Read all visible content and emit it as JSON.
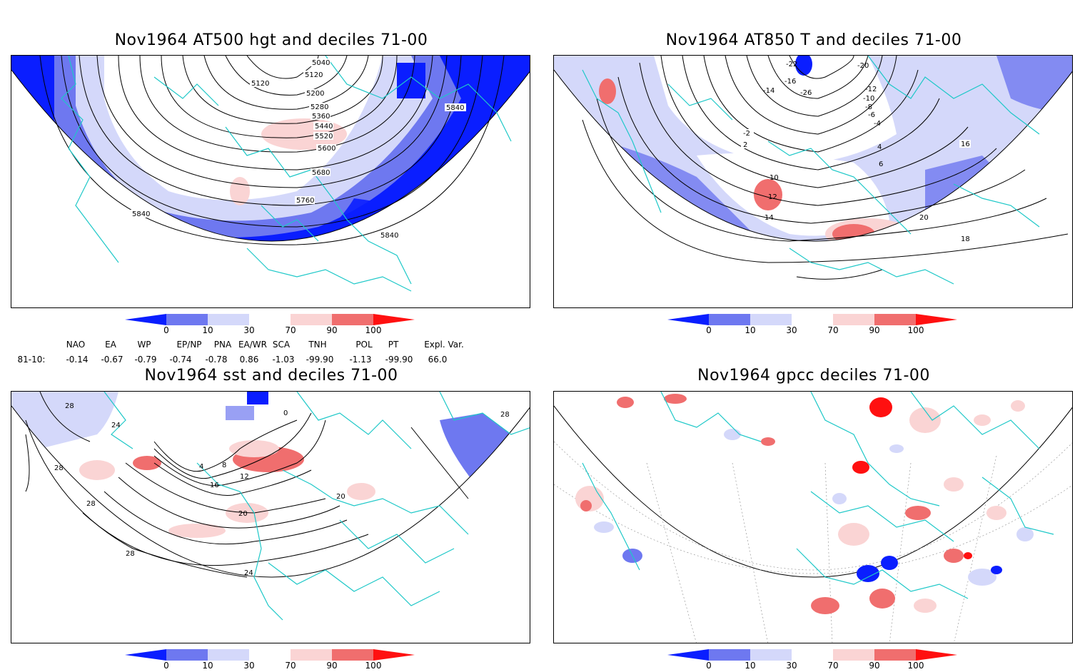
{
  "panels": [
    {
      "title": "Nov1964 AT500 hgt and deciles 71-00",
      "contour_labels": [
        "5040",
        "5120",
        "5120",
        "5200",
        "5280",
        "5360",
        "5440",
        "5520",
        "5600",
        "5680",
        "5760",
        "5840",
        "5840",
        "5840"
      ]
    },
    {
      "title": "Nov1964 AT850 T and deciles 71-00",
      "contour_labels": [
        "-22",
        "-20",
        "-16",
        "-14",
        "-12",
        "-10",
        "-8",
        "-6",
        "-4",
        "-2",
        "2",
        "4",
        "6",
        "10",
        "12",
        "14",
        "16",
        "18",
        "20",
        "-26"
      ]
    },
    {
      "title": "Nov1964 sst and deciles 71-00",
      "contour_labels": [
        "28",
        "24",
        "28",
        "28",
        "0",
        "4",
        "8",
        "12",
        "16",
        "20",
        "24",
        "28",
        "20",
        "28"
      ]
    },
    {
      "title": "Nov1964 gpcc deciles 71-00",
      "contour_labels": []
    }
  ],
  "colorbar": {
    "labels": [
      "0",
      "10",
      "30",
      "70",
      "90",
      "100"
    ],
    "colors": {
      "dark_blue": "#0a1eff",
      "mid_blue": "#6e78f0",
      "light_blue": "#d4d8fa",
      "white": "#ffffff",
      "light_red": "#fad4d4",
      "mid_red": "#f06e6e",
      "dark_red": "#ff1010"
    }
  },
  "indices": {
    "headers": [
      "NAO",
      "EA",
      "WP",
      "EP/NP",
      "PNA",
      "EA/WR",
      "SCA",
      "TNH",
      "POL",
      "PT",
      "Expl. Var."
    ],
    "row_label": "81-10:",
    "values": [
      "-0.14",
      "-0.67",
      "-0.79",
      "-0.74",
      "-0.78",
      "0.86",
      "-1.03",
      "-99.90",
      "-1.13",
      "-99.90",
      "66.0"
    ]
  },
  "colors": {
    "coast": "#1ec8c8",
    "contour": "#000000",
    "grid": "#999999"
  }
}
